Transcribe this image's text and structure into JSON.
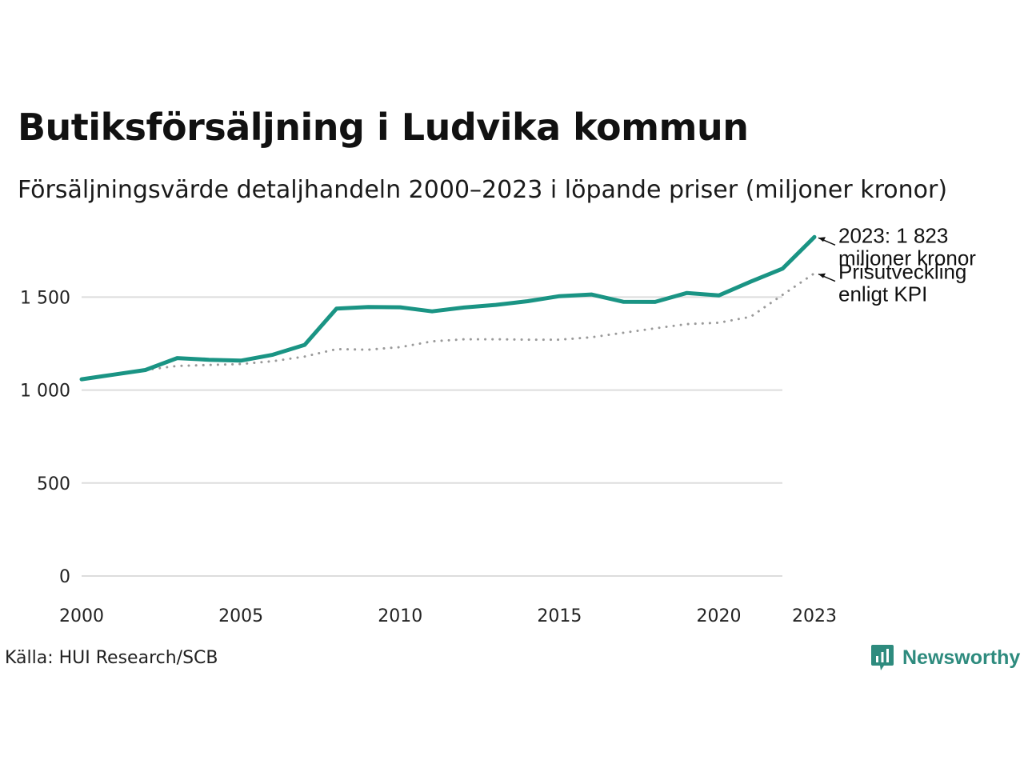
{
  "header": {
    "title": "Butiksförsäljning i Ludvika kommun",
    "subtitle": "Försäljningsvärde detaljhandeln 2000–2023 i löpande priser (miljoner kronor)"
  },
  "footer": {
    "source": "Källa: HUI Research/SCB",
    "brand": "Newsworthy",
    "brand_icon": "newsworthy-logo-icon"
  },
  "colors": {
    "sales_line": "#1a9484",
    "kpi_line": "#9a9a9a",
    "grid": "#dddddd",
    "brand": "#2e8b7e"
  },
  "chart_data": {
    "type": "line",
    "title": "Butiksförsäljning i Ludvika kommun",
    "subtitle": "Försäljningsvärde detaljhandeln 2000–2023 i löpande priser (miljoner kronor)",
    "xlabel": "",
    "ylabel": "",
    "xlim": [
      2000,
      2023
    ],
    "ylim": [
      0,
      1850
    ],
    "x_ticks": [
      {
        "value": 2000,
        "label": "2000"
      },
      {
        "value": 2005,
        "label": "2005"
      },
      {
        "value": 2010,
        "label": "2010"
      },
      {
        "value": 2015,
        "label": "2015"
      },
      {
        "value": 2020,
        "label": "2020"
      },
      {
        "value": 2023,
        "label": "2023"
      }
    ],
    "y_ticks": [
      {
        "value": 0,
        "label": "0"
      },
      {
        "value": 500,
        "label": "500"
      },
      {
        "value": 1000,
        "label": "1 000"
      },
      {
        "value": 1500,
        "label": "1 500"
      }
    ],
    "grid": true,
    "series": [
      {
        "name": "Försäljningsvärde",
        "style": "solid",
        "x": [
          2000,
          2001,
          2002,
          2003,
          2004,
          2005,
          2006,
          2007,
          2008,
          2009,
          2010,
          2011,
          2012,
          2013,
          2014,
          2015,
          2016,
          2017,
          2018,
          2019,
          2020,
          2021,
          2022,
          2023
        ],
        "values": [
          1058,
          1083,
          1108,
          1172,
          1163,
          1158,
          1190,
          1243,
          1438,
          1447,
          1445,
          1423,
          1444,
          1458,
          1478,
          1505,
          1514,
          1475,
          1474,
          1522,
          1509,
          1583,
          1653,
          1823
        ]
      },
      {
        "name": "Prisutveckling enligt KPI",
        "style": "dotted",
        "x": [
          2002,
          2003,
          2004,
          2005,
          2006,
          2007,
          2008,
          2009,
          2010,
          2011,
          2012,
          2013,
          2014,
          2015,
          2016,
          2017,
          2018,
          2019,
          2020,
          2021,
          2022,
          2023
        ],
        "values": [
          1108,
          1130,
          1135,
          1140,
          1155,
          1180,
          1220,
          1217,
          1231,
          1262,
          1273,
          1273,
          1271,
          1271,
          1284,
          1308,
          1332,
          1355,
          1362,
          1394,
          1512,
          1628
        ]
      }
    ],
    "annotations": [
      {
        "series": 0,
        "lines": [
          "2023: 1 823",
          "miljoner kronor"
        ]
      },
      {
        "series": 1,
        "lines": [
          "Prisutveckling",
          "enligt KPI"
        ]
      }
    ]
  }
}
